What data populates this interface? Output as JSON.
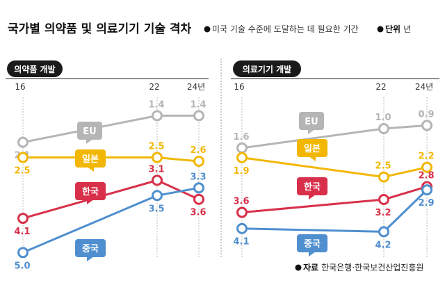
{
  "header": {
    "title": "국가별 의약품 및 의료기기 기술 격차",
    "note": "미국 기술 수준에 도달하는 데 필요한 기간",
    "unit_label": "단위",
    "unit_value": "년"
  },
  "source": {
    "label": "자료",
    "text": "한국은행·한국보건산업진흥원"
  },
  "colors": {
    "EU": "#b5b5b5",
    "일본": "#f2b705",
    "한국": "#d8304a",
    "중국": "#4f8fcf"
  },
  "chart_data": [
    {
      "type": "line",
      "title": "의약품 개발",
      "x": [
        16,
        22,
        24
      ],
      "x_tick_labels": [
        "16",
        "22",
        "24년"
      ],
      "y_axis": "inverted (fewer years plotted higher)",
      "series": [
        {
          "name": "EU",
          "values": [
            2.1,
            1.4,
            1.4
          ],
          "labels": [
            "2.1",
            "1.4",
            "1.4"
          ]
        },
        {
          "name": "일본",
          "values": [
            2.5,
            2.5,
            2.6
          ],
          "labels": [
            "2.5",
            "2.5",
            "2.6"
          ]
        },
        {
          "name": "한국",
          "values": [
            4.1,
            3.1,
            3.6
          ],
          "labels": [
            "4.1",
            "3.1",
            "3.6"
          ]
        },
        {
          "name": "중국",
          "values": [
            5.0,
            3.5,
            3.3
          ],
          "labels": [
            "5.0",
            "3.5",
            "3.3"
          ]
        }
      ]
    },
    {
      "type": "line",
      "title": "의료기기 개발",
      "x": [
        16,
        22,
        24
      ],
      "x_tick_labels": [
        "16",
        "22",
        "24년"
      ],
      "y_axis": "inverted (fewer years plotted higher)",
      "series": [
        {
          "name": "EU",
          "values": [
            1.6,
            1.0,
            0.9
          ],
          "labels": [
            "1.6",
            "1.0",
            "0.9"
          ]
        },
        {
          "name": "일본",
          "values": [
            1.9,
            2.5,
            2.2
          ],
          "labels": [
            "1.9",
            "2.5",
            "2.2"
          ]
        },
        {
          "name": "한국",
          "values": [
            3.6,
            3.2,
            2.8
          ],
          "labels": [
            "3.6",
            "3.2",
            "2.8"
          ]
        },
        {
          "name": "중국",
          "values": [
            4.1,
            4.2,
            2.9
          ],
          "labels": [
            "4.1",
            "4.2",
            "2.9"
          ]
        }
      ]
    }
  ]
}
